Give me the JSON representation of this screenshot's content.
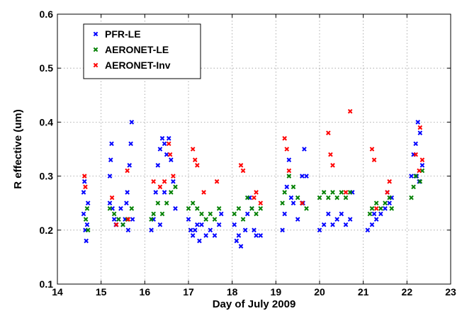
{
  "chart_data": {
    "type": "scatter",
    "title": "",
    "xlabel": "Day of July 2009",
    "ylabel": "R effective  (um)",
    "xlim": [
      14,
      23
    ],
    "ylim": [
      0.1,
      0.6
    ],
    "xticks": [
      14,
      15,
      16,
      17,
      18,
      19,
      20,
      21,
      22,
      23
    ],
    "yticks": [
      0.1,
      0.2,
      0.3,
      0.4,
      0.5,
      0.6
    ],
    "ytick_labels": [
      "0.1",
      "0.2",
      "0.3",
      "0.4",
      "0.5",
      "0.6"
    ],
    "grid": true,
    "legend_position": "top-left",
    "marker": "x",
    "series": [
      {
        "name": "PFR-LE",
        "color": "#0000ff",
        "points": [
          [
            14.6,
            0.23
          ],
          [
            14.6,
            0.27
          ],
          [
            14.62,
            0.29
          ],
          [
            14.64,
            0.2
          ],
          [
            14.66,
            0.18
          ],
          [
            14.68,
            0.21
          ],
          [
            14.7,
            0.25
          ],
          [
            15.2,
            0.25
          ],
          [
            15.2,
            0.3
          ],
          [
            15.22,
            0.33
          ],
          [
            15.24,
            0.36
          ],
          [
            15.26,
            0.24
          ],
          [
            15.3,
            0.22
          ],
          [
            15.34,
            0.21
          ],
          [
            15.4,
            0.22
          ],
          [
            15.45,
            0.24
          ],
          [
            15.5,
            0.21
          ],
          [
            15.55,
            0.22
          ],
          [
            15.6,
            0.27
          ],
          [
            15.65,
            0.32
          ],
          [
            15.68,
            0.36
          ],
          [
            15.7,
            0.4
          ],
          [
            15.72,
            0.22
          ],
          [
            15.62,
            0.2
          ],
          [
            15.58,
            0.25
          ],
          [
            16.15,
            0.2
          ],
          [
            16.2,
            0.22
          ],
          [
            16.25,
            0.27
          ],
          [
            16.3,
            0.32
          ],
          [
            16.35,
            0.35
          ],
          [
            16.4,
            0.37
          ],
          [
            16.45,
            0.36
          ],
          [
            16.5,
            0.34
          ],
          [
            16.55,
            0.37
          ],
          [
            16.6,
            0.33
          ],
          [
            16.65,
            0.29
          ],
          [
            16.7,
            0.24
          ],
          [
            16.45,
            0.27
          ],
          [
            16.35,
            0.21
          ],
          [
            17.0,
            0.22
          ],
          [
            17.05,
            0.2
          ],
          [
            17.1,
            0.19
          ],
          [
            17.15,
            0.2
          ],
          [
            17.2,
            0.21
          ],
          [
            17.25,
            0.18
          ],
          [
            17.3,
            0.21
          ],
          [
            17.4,
            0.19
          ],
          [
            17.5,
            0.2
          ],
          [
            17.6,
            0.19
          ],
          [
            17.7,
            0.21
          ],
          [
            17.75,
            0.23
          ],
          [
            18.05,
            0.21
          ],
          [
            18.1,
            0.18
          ],
          [
            18.15,
            0.19
          ],
          [
            18.2,
            0.17
          ],
          [
            18.3,
            0.2
          ],
          [
            18.35,
            0.23
          ],
          [
            18.4,
            0.26
          ],
          [
            18.45,
            0.24
          ],
          [
            18.5,
            0.2
          ],
          [
            18.55,
            0.19
          ],
          [
            18.65,
            0.19
          ],
          [
            19.15,
            0.2
          ],
          [
            19.2,
            0.23
          ],
          [
            19.25,
            0.28
          ],
          [
            19.3,
            0.33
          ],
          [
            19.35,
            0.26
          ],
          [
            19.4,
            0.25
          ],
          [
            19.5,
            0.22
          ],
          [
            19.6,
            0.3
          ],
          [
            19.65,
            0.35
          ],
          [
            19.7,
            0.3
          ],
          [
            19.62,
            0.25
          ],
          [
            20.0,
            0.2
          ],
          [
            20.1,
            0.21
          ],
          [
            20.2,
            0.23
          ],
          [
            20.3,
            0.21
          ],
          [
            20.4,
            0.22
          ],
          [
            20.5,
            0.23
          ],
          [
            20.6,
            0.21
          ],
          [
            20.7,
            0.22
          ],
          [
            20.75,
            0.27
          ],
          [
            21.1,
            0.2
          ],
          [
            21.2,
            0.21
          ],
          [
            21.25,
            0.23
          ],
          [
            21.3,
            0.22
          ],
          [
            21.4,
            0.23
          ],
          [
            21.5,
            0.24
          ],
          [
            21.55,
            0.27
          ],
          [
            21.6,
            0.25
          ],
          [
            21.65,
            0.26
          ],
          [
            22.1,
            0.3
          ],
          [
            22.15,
            0.34
          ],
          [
            22.2,
            0.36
          ],
          [
            22.25,
            0.4
          ],
          [
            22.3,
            0.38
          ],
          [
            22.35,
            0.32
          ],
          [
            22.28,
            0.29
          ],
          [
            22.22,
            0.3
          ]
        ]
      },
      {
        "name": "AERONET-LE",
        "color": "#008000",
        "points": [
          [
            14.65,
            0.22
          ],
          [
            14.7,
            0.2
          ],
          [
            14.68,
            0.24
          ],
          [
            15.2,
            0.24
          ],
          [
            15.3,
            0.23
          ],
          [
            15.4,
            0.22
          ],
          [
            15.5,
            0.21
          ],
          [
            15.6,
            0.22
          ],
          [
            15.7,
            0.24
          ],
          [
            16.15,
            0.22
          ],
          [
            16.2,
            0.23
          ],
          [
            16.3,
            0.25
          ],
          [
            16.4,
            0.23
          ],
          [
            16.5,
            0.25
          ],
          [
            16.6,
            0.27
          ],
          [
            16.7,
            0.28
          ],
          [
            17.0,
            0.24
          ],
          [
            17.1,
            0.25
          ],
          [
            17.2,
            0.24
          ],
          [
            17.3,
            0.23
          ],
          [
            17.4,
            0.22
          ],
          [
            17.5,
            0.23
          ],
          [
            17.6,
            0.22
          ],
          [
            17.7,
            0.24
          ],
          [
            18.05,
            0.23
          ],
          [
            18.15,
            0.24
          ],
          [
            18.25,
            0.22
          ],
          [
            18.35,
            0.26
          ],
          [
            18.45,
            0.24
          ],
          [
            18.55,
            0.23
          ],
          [
            18.65,
            0.24
          ],
          [
            19.15,
            0.25
          ],
          [
            19.2,
            0.27
          ],
          [
            19.3,
            0.3
          ],
          [
            19.4,
            0.28
          ],
          [
            19.5,
            0.26
          ],
          [
            19.6,
            0.25
          ],
          [
            19.7,
            0.24
          ],
          [
            20.0,
            0.26
          ],
          [
            20.1,
            0.27
          ],
          [
            20.2,
            0.26
          ],
          [
            20.3,
            0.27
          ],
          [
            20.4,
            0.26
          ],
          [
            20.5,
            0.27
          ],
          [
            20.6,
            0.26
          ],
          [
            20.7,
            0.27
          ],
          [
            21.15,
            0.23
          ],
          [
            21.2,
            0.24
          ],
          [
            21.3,
            0.25
          ],
          [
            21.4,
            0.24
          ],
          [
            21.5,
            0.25
          ],
          [
            21.6,
            0.26
          ],
          [
            21.65,
            0.24
          ],
          [
            22.1,
            0.26
          ],
          [
            22.15,
            0.28
          ],
          [
            22.2,
            0.3
          ],
          [
            22.3,
            0.29
          ],
          [
            22.35,
            0.31
          ]
        ]
      },
      {
        "name": "AERONET-Inv",
        "color": "#ff0000",
        "points": [
          [
            14.62,
            0.3
          ],
          [
            14.64,
            0.28
          ],
          [
            15.25,
            0.26
          ],
          [
            15.35,
            0.21
          ],
          [
            15.6,
            0.31
          ],
          [
            15.62,
            0.22
          ],
          [
            16.2,
            0.29
          ],
          [
            16.35,
            0.28
          ],
          [
            16.45,
            0.29
          ],
          [
            16.55,
            0.36
          ],
          [
            16.58,
            0.34
          ],
          [
            16.65,
            0.3
          ],
          [
            17.1,
            0.35
          ],
          [
            17.15,
            0.33
          ],
          [
            17.2,
            0.32
          ],
          [
            17.35,
            0.27
          ],
          [
            17.65,
            0.29
          ],
          [
            18.2,
            0.32
          ],
          [
            18.25,
            0.31
          ],
          [
            18.5,
            0.26
          ],
          [
            18.65,
            0.25
          ],
          [
            18.55,
            0.27
          ],
          [
            19.2,
            0.37
          ],
          [
            19.25,
            0.35
          ],
          [
            19.3,
            0.31
          ],
          [
            19.6,
            0.25
          ],
          [
            20.2,
            0.38
          ],
          [
            20.25,
            0.34
          ],
          [
            20.3,
            0.32
          ],
          [
            20.6,
            0.27
          ],
          [
            20.7,
            0.42
          ],
          [
            21.2,
            0.35
          ],
          [
            21.25,
            0.33
          ],
          [
            21.3,
            0.24
          ],
          [
            21.55,
            0.27
          ],
          [
            21.6,
            0.29
          ],
          [
            22.2,
            0.34
          ],
          [
            22.3,
            0.39
          ],
          [
            22.35,
            0.33
          ],
          [
            22.28,
            0.31
          ]
        ]
      }
    ]
  }
}
